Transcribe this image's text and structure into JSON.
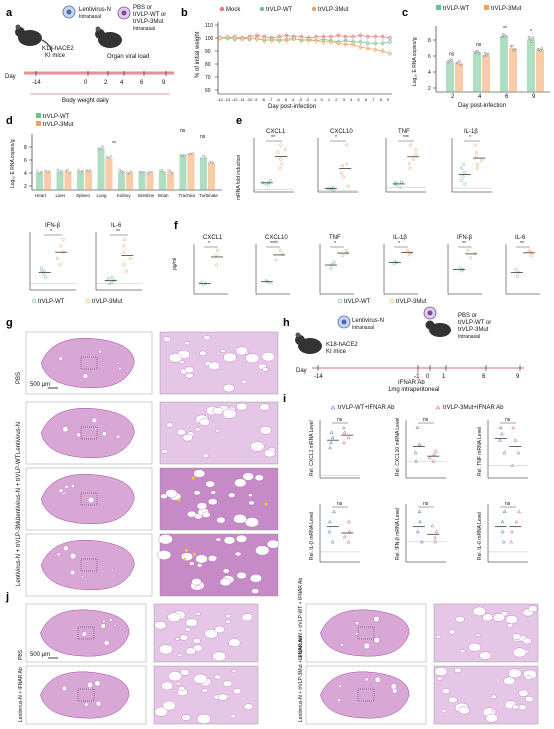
{
  "colors": {
    "wt": "#6cc28e",
    "mut": "#f0a35e",
    "mock": "#e87878",
    "pink": "#e05aa8",
    "he": "#d8a7d6",
    "he_dark": "#a04aa8",
    "blue": "#4a7bd0"
  },
  "panel_labels": {
    "a": "a",
    "b": "b",
    "c": "c",
    "d": "d",
    "e": "e",
    "f": "f",
    "g": "g",
    "h": "h",
    "i": "i",
    "j": "j"
  },
  "panel_a": {
    "lenti": "Lentivirus-N",
    "intranasal1": "Intranasal",
    "treat1": "PBS or",
    "treat2": "trVLP-WT or",
    "treat3": "trVLP-3Mut",
    "intranasal2": "Intranasal",
    "mice1": "K18-hACE2",
    "mice2": "KI mice",
    "day_label": "Day",
    "days": [
      "-14",
      "0",
      "2",
      "4",
      "6",
      "9"
    ],
    "organ1": "Organ viral load",
    "weight": "Body weight daily"
  },
  "panel_b": {
    "legend": [
      "Mock",
      "trVLP-WT",
      "trVLP-3Mut"
    ],
    "ylabel": "% of initial weight",
    "xlabel": "Day post-infection",
    "yticks": [
      "60",
      "70",
      "80",
      "90",
      "100",
      "110"
    ],
    "xticks": [
      "-14",
      "-13",
      "-12",
      "-11",
      "-10",
      "-9",
      "-8",
      "-7",
      "-6",
      "-5",
      "-4",
      "-3",
      "-2",
      "-1",
      "0",
      "1",
      "2",
      "3",
      "4",
      "5",
      "6",
      "7",
      "8",
      "9"
    ]
  },
  "panel_c": {
    "legend": [
      "trVLP-WT",
      "trVLP-3Mut"
    ],
    "ylabel": "Log₁₀ E RNA copies/g",
    "xlabel": "Day post-infection",
    "yticks": [
      "2",
      "4",
      "6",
      "8"
    ],
    "xticks": [
      "2",
      "4",
      "6",
      "9"
    ],
    "sig": [
      "ns",
      "ns",
      "**",
      "*"
    ]
  },
  "panel_d": {
    "legend": [
      "trVLP-WT",
      "trVLP-3Mut"
    ],
    "ylabel": "Log₁₀ E RNA copies/g",
    "yticks": [
      "2",
      "4",
      "6",
      "8"
    ],
    "xticks": [
      "Heart",
      "Liver",
      "Spleen",
      "Lung",
      "Kidney",
      "Intestine",
      "Brian",
      "Trachea",
      "Turbinate"
    ],
    "sig": [
      "**",
      "ns",
      "ns"
    ]
  },
  "panel_e": {
    "ylabel": "mRNA fold induction",
    "titles": [
      "CXCL1",
      "CXCL10",
      "TNF",
      "IL-1β",
      "IFN-β",
      "IL-6"
    ],
    "sig": [
      "**",
      "*",
      "***",
      "*",
      "*",
      "**"
    ],
    "legend": [
      "trVLP-WT",
      "trVLP-3Mut"
    ]
  },
  "panel_f": {
    "ylabel": "pg/ml",
    "titles": [
      "CXCL1",
      "CXCL10",
      "TNF",
      "IL-1β",
      "IFN-β",
      "IL-6"
    ],
    "sig": [
      "*",
      "****",
      "*",
      "*",
      "**",
      "**"
    ],
    "legend": [
      "trVLP-WT",
      "trVLP-3Mut"
    ]
  },
  "panel_g": {
    "rows": [
      "PBS",
      "Lentivirus-N",
      "Lentivirus-N + trVLP-WT",
      "Lentivirus-N + trVLP-3Mut"
    ],
    "scale": "500 μm"
  },
  "panel_h": {
    "lenti": "Lentivirus-N",
    "intranasal1": "Intranasal",
    "mice1": "K18-hACE2",
    "mice2": "KI mice",
    "treat1": "PBS or",
    "treat2": "trVLP-WT or",
    "treat3": "trVLP-3Mut",
    "intranasal2": "Intranasal",
    "day_label": "Day",
    "days": [
      "-14",
      "-1",
      "0",
      "1",
      "6",
      "9"
    ],
    "ifnar1": "IFNAR Ab",
    "ifnar2": "1mg intraperitoneal"
  },
  "panel_i": {
    "legend": [
      "trVLP-WT+IFNAR Ab",
      "trVLP-3Mut+IFNAR Ab"
    ],
    "ylabels": [
      "Rel. CXCL1 mRNA Level",
      "Rel. CXCL10 mRNA Level",
      "Rel. TNF mRNA Level",
      "Rel. IL-β mRNA Level",
      "Rel. IFN-β mRNA Level",
      "Rel. IL-6 mRNA Level"
    ],
    "sig": [
      "ns",
      "ns",
      "ns",
      "ns",
      "ns",
      "ns"
    ]
  },
  "panel_j": {
    "rows": [
      "PBS",
      "Lentivirus-N + IFNAR Ab",
      "Lentivirus-N + trVLP-WT + IFNAR Ab",
      "Lentivirus-N + trVLP-3Mut + IFNAR Ab"
    ],
    "scale": "500 μm"
  }
}
